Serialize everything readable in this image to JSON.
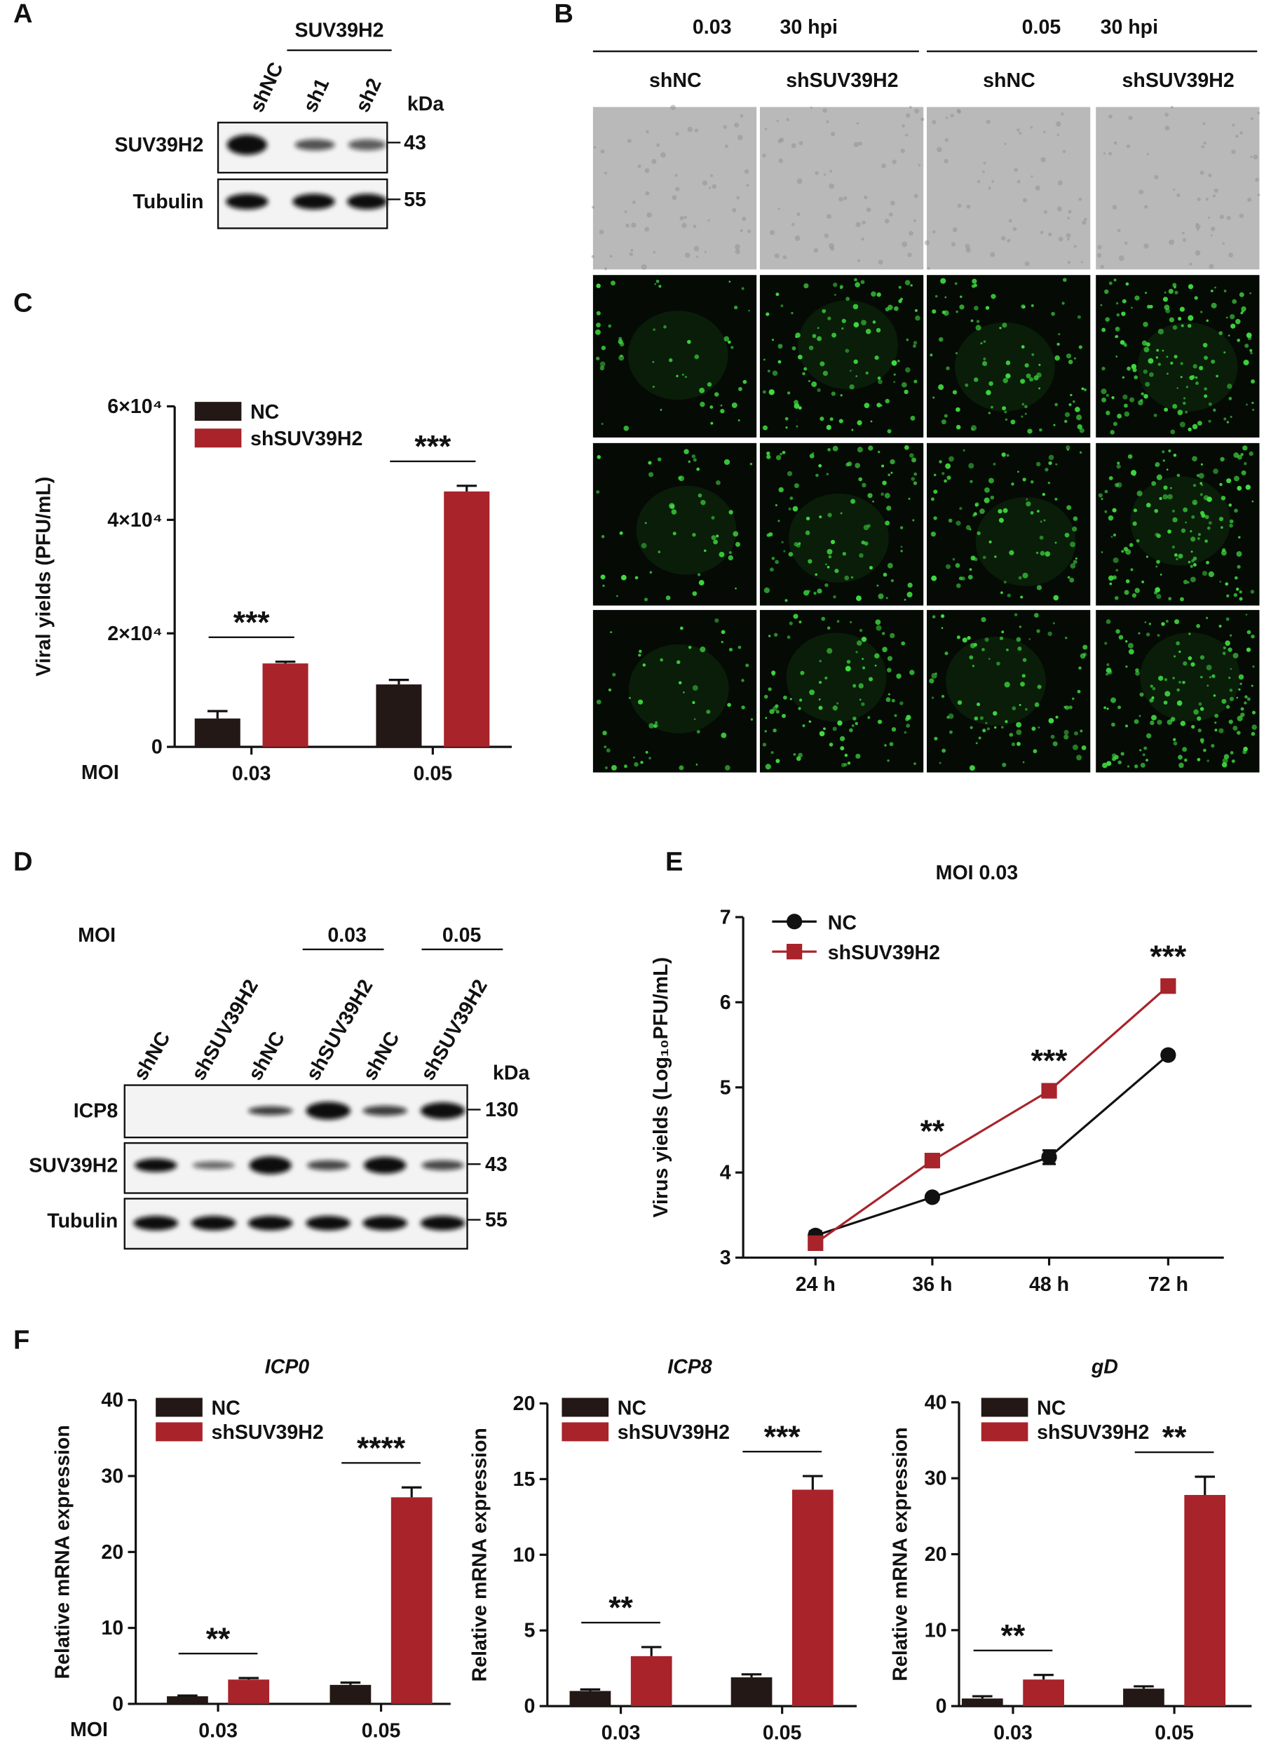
{
  "panel_labels": [
    "A",
    "B",
    "C",
    "D",
    "E",
    "F"
  ],
  "blot_a": {
    "group": "SUV39H2",
    "lanes": [
      "shNC",
      "sh1",
      "sh2"
    ],
    "unit": "kDa",
    "rows": [
      {
        "name": "SUV39H2",
        "marker": "43"
      },
      {
        "name": "Tubulin",
        "marker": "55"
      }
    ]
  },
  "micrographs_b": {
    "conditions": [
      {
        "moi": "0.03",
        "time": "30 hpi"
      },
      {
        "moi": "0.05",
        "time": "30 hpi"
      }
    ],
    "columns": [
      "shNC",
      "shSUV39H2",
      "shNC",
      "shSUV39H2"
    ]
  },
  "blot_d": {
    "moi_label": "MOI",
    "moi_groups": [
      "0.03",
      "0.05"
    ],
    "lanes": [
      "shNC",
      "shSUV39H2",
      "shNC",
      "shSUV39H2",
      "shNC",
      "shSUV39H2"
    ],
    "unit": "kDa",
    "rows": [
      {
        "name": "ICP8",
        "marker": "130"
      },
      {
        "name": "SUV39H2",
        "marker": "43"
      },
      {
        "name": "Tubulin",
        "marker": "55"
      }
    ]
  },
  "chart_data": [
    {
      "type": "bar",
      "ylabel": "Viral yields (PFU/mL)",
      "xlabel": "MOI",
      "categories": [
        "0.03",
        "0.05"
      ],
      "series": [
        {
          "name": "NC",
          "color": "#231815",
          "values": [
            5000,
            11000
          ],
          "errors": [
            1300,
            800
          ]
        },
        {
          "name": "shSUV39H2",
          "color": "#a8232a",
          "values": [
            14700,
            45000
          ],
          "errors": [
            300,
            1000
          ]
        }
      ],
      "annotations": [
        "***",
        "***"
      ],
      "ylim": [
        0,
        60000
      ],
      "yticks": [
        0,
        {
          "value": 20000,
          "label": "2×10⁴"
        },
        {
          "value": 40000,
          "label": "4×10⁴"
        },
        {
          "value": 60000,
          "label": "6×10⁴"
        }
      ]
    },
    {
      "type": "line",
      "title": "MOI  0.03",
      "ylabel": "Virus yields (Log₁₀PFU/mL)",
      "categories": [
        "24 h",
        "36 h",
        "48 h",
        "72 h"
      ],
      "series": [
        {
          "name": "NC",
          "color": "#111111",
          "marker": "circle",
          "values": [
            3.26,
            3.71,
            4.18,
            5.38
          ],
          "errors": [
            0.05,
            0.03,
            0.08,
            0.04
          ]
        },
        {
          "name": "shSUV39H2",
          "color": "#a8232a",
          "marker": "square",
          "values": [
            3.17,
            4.14,
            4.96,
            6.19
          ],
          "errors": [
            0.03,
            0.04,
            0.05,
            0.04
          ]
        }
      ],
      "annotations": [
        null,
        "**",
        "***",
        "***"
      ],
      "ylim": [
        3,
        7
      ],
      "yticks": [
        3,
        4,
        5,
        6,
        7
      ]
    },
    {
      "type": "bar",
      "title": "ICP0",
      "ylabel": "Relative mRNA expression",
      "xlabel": "MOI",
      "categories": [
        "0.03",
        "0.05"
      ],
      "series": [
        {
          "name": "NC",
          "color": "#231815",
          "values": [
            1.0,
            2.5
          ],
          "errors": [
            0.1,
            0.3
          ]
        },
        {
          "name": "shSUV39H2",
          "color": "#a8232a",
          "values": [
            3.2,
            27.2
          ],
          "errors": [
            0.2,
            1.3
          ]
        }
      ],
      "annotations": [
        "**",
        "****"
      ],
      "ylim": [
        0,
        40
      ],
      "yticks": [
        0,
        10,
        20,
        30,
        40
      ]
    },
    {
      "type": "bar",
      "title": "ICP8",
      "ylabel": "Relative mRNA expression",
      "categories": [
        "0.03",
        "0.05"
      ],
      "series": [
        {
          "name": "NC",
          "color": "#231815",
          "values": [
            1.0,
            1.9
          ],
          "errors": [
            0.1,
            0.2
          ]
        },
        {
          "name": "shSUV39H2",
          "color": "#a8232a",
          "values": [
            3.3,
            14.3
          ],
          "errors": [
            0.6,
            0.9
          ]
        }
      ],
      "annotations": [
        "**",
        "***"
      ],
      "ylim": [
        0,
        20
      ],
      "yticks": [
        0,
        5,
        10,
        15,
        20
      ]
    },
    {
      "type": "bar",
      "title": "gD",
      "ylabel": "Relative mRNA expression",
      "categories": [
        "0.03",
        "0.05"
      ],
      "series": [
        {
          "name": "NC",
          "color": "#231815",
          "values": [
            1.0,
            2.3
          ],
          "errors": [
            0.3,
            0.3
          ]
        },
        {
          "name": "shSUV39H2",
          "color": "#a8232a",
          "values": [
            3.5,
            27.8
          ],
          "errors": [
            0.6,
            2.4
          ]
        }
      ],
      "annotations": [
        "**",
        "**"
      ],
      "ylim": [
        0,
        40
      ],
      "yticks": [
        0,
        10,
        20,
        30,
        40
      ]
    }
  ]
}
